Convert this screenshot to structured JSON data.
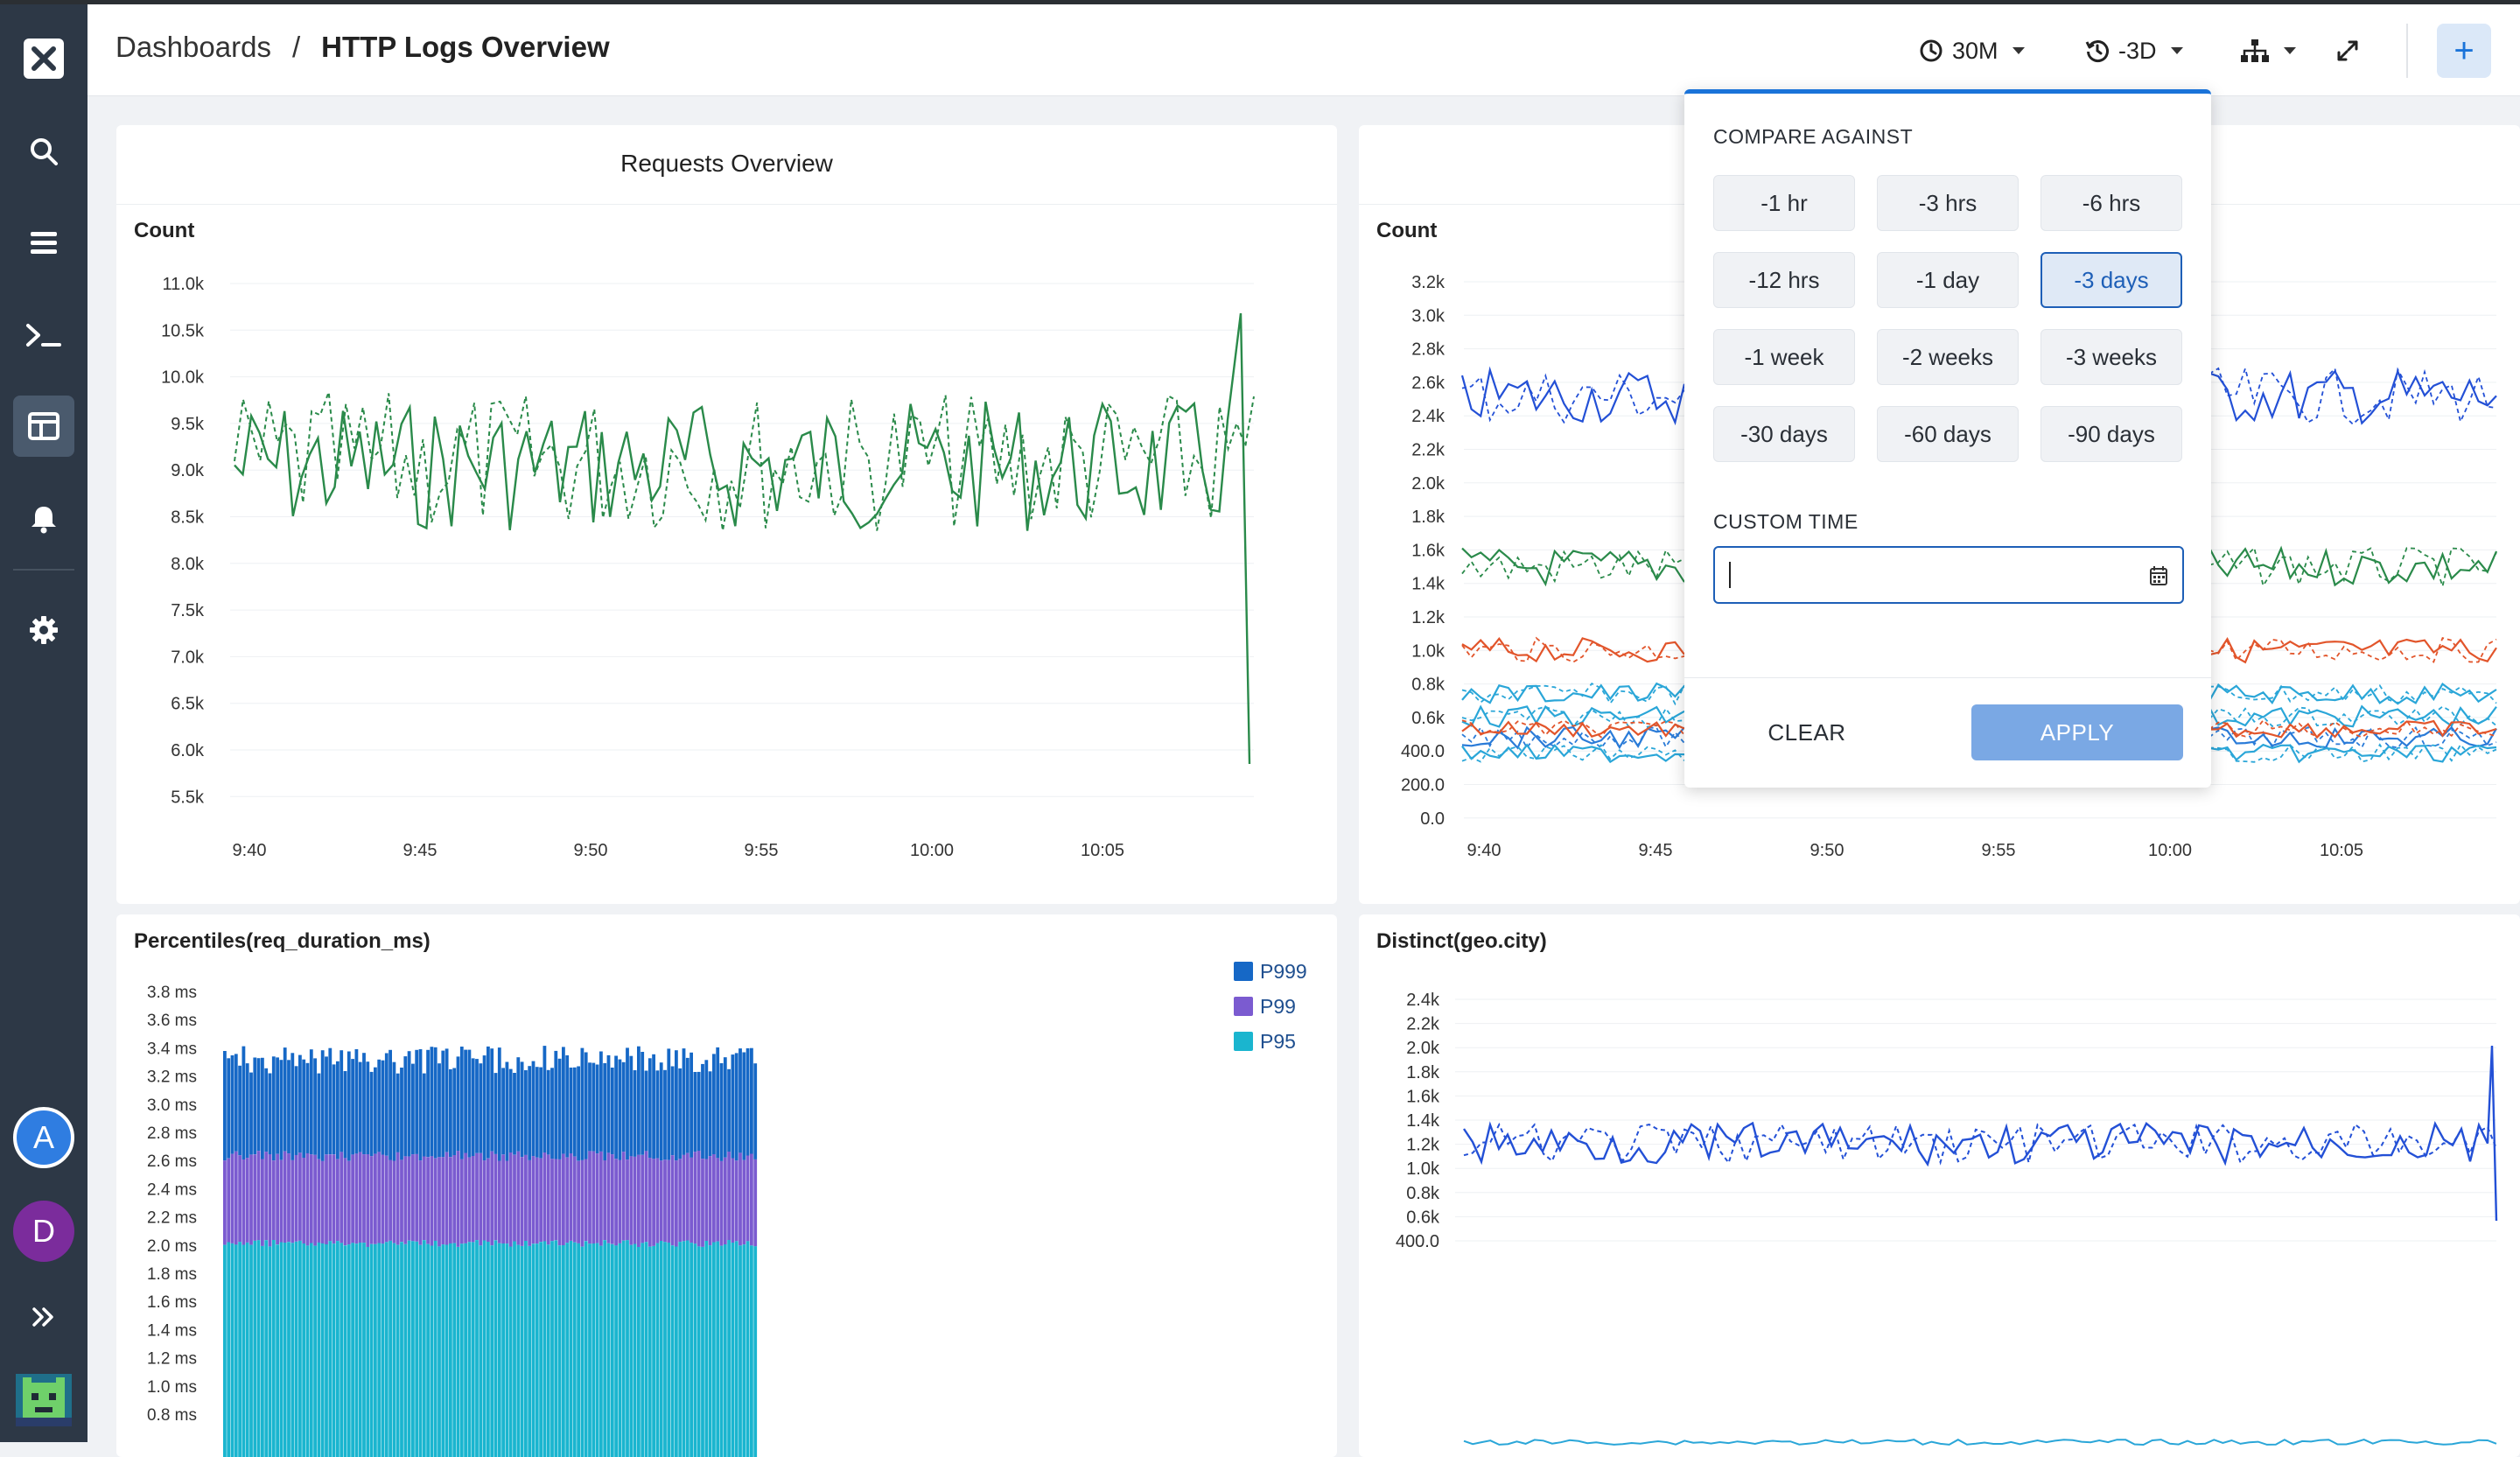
{
  "breadcrumb": {
    "root": "Dashboards",
    "separator": "/",
    "current": "HTTP Logs Overview"
  },
  "header": {
    "time_range": "30M",
    "compare": "-3D",
    "plus_label": "+"
  },
  "sidebar": {
    "avatars": [
      "A",
      "D"
    ],
    "avatar_colors": [
      "#2f7de1",
      "#7b2c9c"
    ]
  },
  "colors": {
    "green": "#2a8a4a",
    "blue": "#2350d6",
    "orange": "#e2552b",
    "cyan": "#2aa6d8",
    "accent": "#1a73d9"
  },
  "panels": {
    "requests": {
      "title": "Requests Overview",
      "ylabel": "Count",
      "yticks": [
        "11.0k",
        "10.5k",
        "10.0k",
        "9.5k",
        "9.0k",
        "8.5k",
        "8.0k",
        "7.5k",
        "7.0k",
        "6.5k",
        "6.0k",
        "5.5k"
      ],
      "xticks": [
        "9:40",
        "9:45",
        "9:50",
        "9:55",
        "10:00",
        "10:05"
      ]
    },
    "status": {
      "ylabel": "Count",
      "yticks": [
        "3.2k",
        "3.0k",
        "2.8k",
        "2.6k",
        "2.4k",
        "2.2k",
        "2.0k",
        "1.8k",
        "1.6k",
        "1.4k",
        "1.2k",
        "1.0k",
        "0.8k",
        "0.6k",
        "400.0",
        "200.0",
        "0.0"
      ],
      "xticks": [
        "9:40",
        "9:45",
        "9:50",
        "9:55",
        "10:00",
        "10:05"
      ]
    },
    "percentiles": {
      "title": "Percentiles(req_duration_ms)",
      "yticks": [
        "3.8 ms",
        "3.6 ms",
        "3.4 ms",
        "3.2 ms",
        "3.0 ms",
        "2.8 ms",
        "2.6 ms",
        "2.4 ms",
        "2.2 ms",
        "2.0 ms",
        "1.8 ms",
        "1.6 ms",
        "1.4 ms",
        "1.2 ms",
        "1.0 ms",
        "0.8 ms"
      ],
      "legend": [
        {
          "name": "P999",
          "color": "#1668c6"
        },
        {
          "name": "P99",
          "color": "#7b5bd0"
        },
        {
          "name": "P95",
          "color": "#1ab5cf"
        }
      ]
    },
    "distinct": {
      "title": "Distinct(geo.city)",
      "yticks": [
        "2.4k",
        "2.2k",
        "2.0k",
        "1.8k",
        "1.6k",
        "1.4k",
        "1.2k",
        "1.0k",
        "0.8k",
        "0.6k",
        "400.0"
      ]
    }
  },
  "compare_popup": {
    "heading": "COMPARE AGAINST",
    "options": [
      "-1 hr",
      "-3 hrs",
      "-6 hrs",
      "-12 hrs",
      "-1 day",
      "-3 days",
      "-1 week",
      "-2 weeks",
      "-3 weeks",
      "-30 days",
      "-60 days",
      "-90 days"
    ],
    "selected": "-3 days",
    "custom_heading": "CUSTOM TIME",
    "custom_value": "",
    "clear_label": "CLEAR",
    "apply_label": "APPLY"
  }
}
